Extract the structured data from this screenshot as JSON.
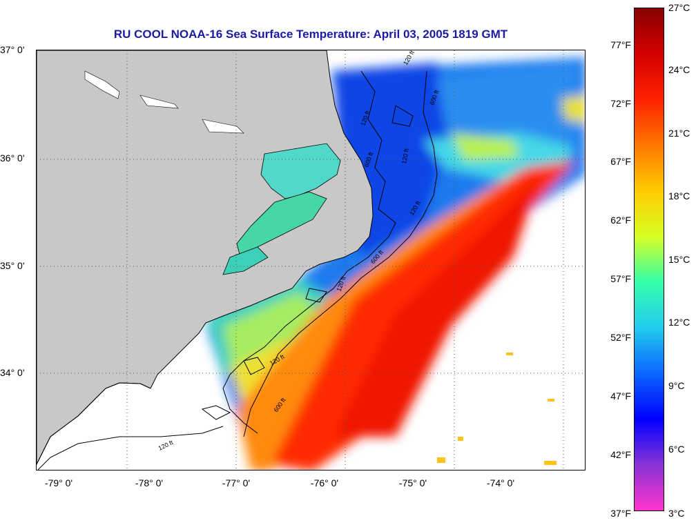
{
  "title": "RU COOL  NOAA-16  Sea Surface Temperature:  April 03, 2005 1819 GMT",
  "map": {
    "lat_labels": [
      "37° 0'",
      "36° 0'",
      "35° 0'",
      "34° 0'"
    ],
    "lon_labels": [
      "-79° 0'",
      "-78° 0'",
      "-77° 0'",
      "-76° 0'",
      "-75° 0'",
      "-74° 0'"
    ],
    "contour_labels": [
      "120 ft",
      "600 ft",
      "120 ft",
      "120 ft",
      "600 ft",
      "120 ft",
      "600 ft",
      "120 ft",
      "120 ft",
      "600 ft",
      "120 ft"
    ],
    "colors": {
      "land": "#c8c8c8",
      "ocean_no_data": "#ffffff",
      "grid": "#555555",
      "title": "#1a1aa6"
    }
  },
  "colorbar": {
    "fahrenheit_labels": [
      "77°F",
      "72°F",
      "67°F",
      "62°F",
      "57°F",
      "52°F",
      "47°F",
      "42°F",
      "37°F"
    ],
    "celsius_labels": [
      "27°C",
      "24°C",
      "21°C",
      "18°C",
      "15°C",
      "12°C",
      "9°C",
      "6°C",
      "3°C"
    ],
    "range_c": [
      3,
      27
    ],
    "stops": [
      "#ff33cc",
      "#8a33d6",
      "#0000ff",
      "#0a66ff",
      "#22ccee",
      "#33ffaa",
      "#d6ff22",
      "#ffcc00",
      "#ff7700",
      "#ff2200",
      "#d40000",
      "#880000"
    ]
  }
}
